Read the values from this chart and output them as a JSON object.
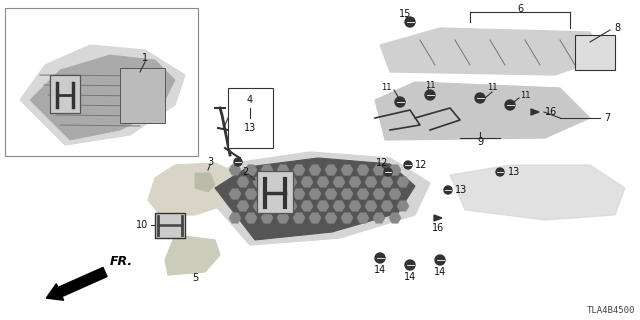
{
  "bg_color": "#ffffff",
  "diagram_code": "TLA4B4500",
  "fr_label": "FR.",
  "line_color": "#333333",
  "label_color": "#111111",
  "fs": 7.0,
  "fs_small": 6.5
}
